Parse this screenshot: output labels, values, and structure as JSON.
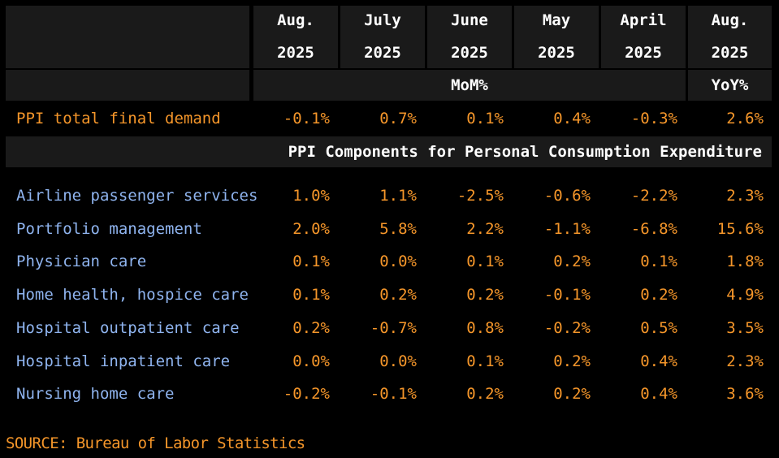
{
  "chart_data": {
    "type": "table",
    "columns": [
      {
        "month": "Aug.",
        "year": "2025"
      },
      {
        "month": "July",
        "year": "2025"
      },
      {
        "month": "June",
        "year": "2025"
      },
      {
        "month": "May",
        "year": "2025"
      },
      {
        "month": "April",
        "year": "2025"
      },
      {
        "month": "Aug.",
        "year": "2025"
      }
    ],
    "group_labels": {
      "mom": "MoM%",
      "yoy": "YoY%"
    },
    "total_row": {
      "label": "PPI total final demand",
      "values": [
        "-0.1%",
        "0.7%",
        "0.1%",
        "0.4%",
        "-0.3%",
        "2.6%"
      ]
    },
    "components_title": "PPI Components for Personal Consumption Expenditure",
    "rows": [
      {
        "label": "Airline passenger services",
        "values": [
          "1.0%",
          "1.1%",
          "-2.5%",
          "-0.6%",
          "-2.2%",
          "2.3%"
        ]
      },
      {
        "label": "Portfolio management",
        "values": [
          "2.0%",
          "5.8%",
          "2.2%",
          "-1.1%",
          "-6.8%",
          "15.6%"
        ]
      },
      {
        "label": "Physician care",
        "values": [
          "0.1%",
          "0.0%",
          "0.1%",
          "0.2%",
          "0.1%",
          "1.8%"
        ]
      },
      {
        "label": "Home health, hospice care",
        "values": [
          "0.1%",
          "0.2%",
          "0.2%",
          "-0.1%",
          "0.2%",
          "4.9%"
        ]
      },
      {
        "label": "Hospital outpatient care",
        "values": [
          "0.2%",
          "-0.7%",
          "0.8%",
          "-0.2%",
          "0.5%",
          "3.5%"
        ]
      },
      {
        "label": "Hospital inpatient care",
        "values": [
          "0.0%",
          "0.0%",
          "0.1%",
          "0.2%",
          "0.4%",
          "2.3%"
        ]
      },
      {
        "label": "Nursing home care",
        "values": [
          "-0.2%",
          "-0.1%",
          "0.2%",
          "0.2%",
          "0.4%",
          "3.6%"
        ]
      }
    ],
    "source": "SOURCE: Bureau of Labor Statistics"
  },
  "colors": {
    "background": "#000000",
    "header_band": "#1a1a1a",
    "header_text": "#ffffff",
    "values": "#f5962a",
    "total_label": "#f5962a",
    "component_labels": "#8fb4ef"
  }
}
